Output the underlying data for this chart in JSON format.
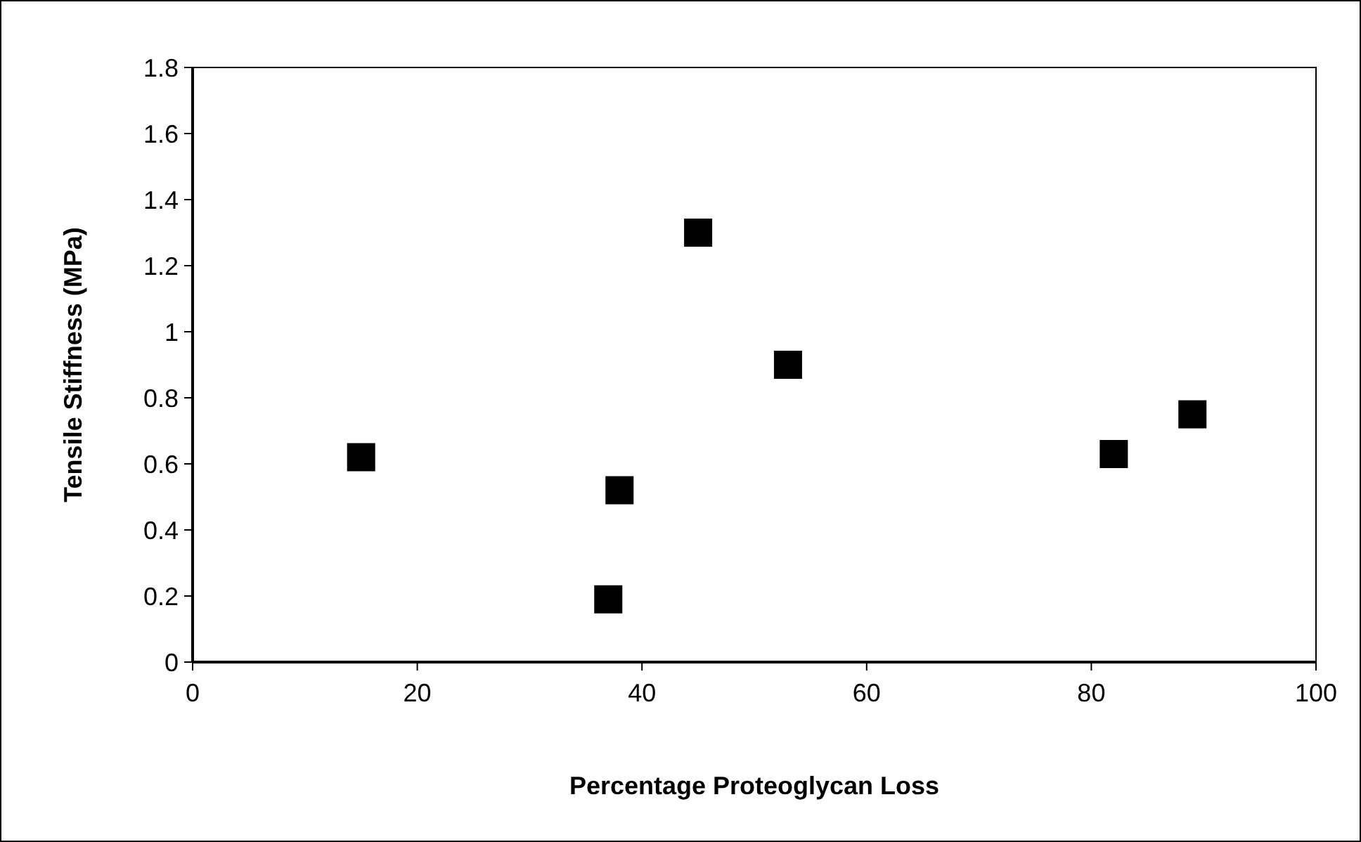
{
  "chart_data": {
    "type": "scatter",
    "xlabel": "Percentage Proteoglycan Loss",
    "ylabel": "Tensile Stiffness (MPa)",
    "x": [
      15,
      37,
      38,
      45,
      53,
      82,
      89
    ],
    "values": [
      0.62,
      0.19,
      0.52,
      1.3,
      0.9,
      0.63,
      0.75
    ],
    "color": "#000000",
    "marker": "square",
    "xlim": [
      0,
      100
    ],
    "xticks": [
      0,
      20,
      40,
      60,
      80,
      100
    ],
    "ylim": [
      0,
      1.8
    ],
    "yticks": [
      0,
      0.2,
      0.4,
      0.6,
      0.8,
      1,
      1.2,
      1.4,
      1.6,
      1.8
    ],
    "grid": false
  }
}
